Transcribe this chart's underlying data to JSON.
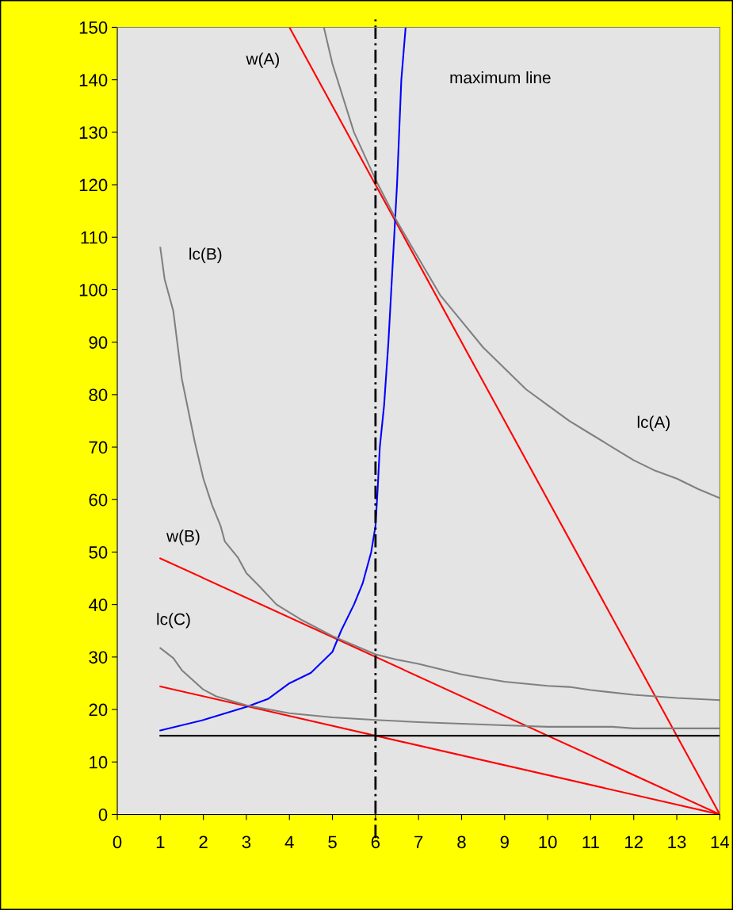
{
  "chart_data": {
    "type": "line",
    "xlim": [
      0,
      14
    ],
    "ylim": [
      0,
      150
    ],
    "xticks": [
      0,
      1,
      2,
      3,
      4,
      5,
      6,
      7,
      8,
      9,
      10,
      11,
      12,
      13,
      14
    ],
    "yticks": [
      0,
      10,
      20,
      30,
      40,
      50,
      60,
      70,
      80,
      90,
      100,
      110,
      120,
      130,
      140,
      150
    ],
    "grid": false,
    "legend": false,
    "marker": "none",
    "series": [
      {
        "name": "w(A)",
        "color": "#ff0000",
        "x": [
          4,
          14
        ],
        "values": [
          150,
          0
        ]
      },
      {
        "name": "w(B)",
        "color": "#ff0000",
        "x": [
          1,
          14
        ],
        "values": [
          48.8,
          0
        ]
      },
      {
        "color": "#ff0000",
        "x": [
          1,
          14
        ],
        "values": [
          24.4,
          0
        ]
      },
      {
        "color": "#000000",
        "x": [
          1,
          14
        ],
        "values": [
          15,
          15
        ]
      },
      {
        "name": "maximum line",
        "color": "#0000ff",
        "x": [
          1,
          2,
          3,
          3.5,
          4,
          4.5,
          5,
          5.2,
          5.5,
          5.7,
          5.9,
          6,
          6.05,
          6.1,
          6.2,
          6.3,
          6.4,
          6.5,
          6.6,
          6.7
        ],
        "values": [
          16,
          18,
          20.5,
          22,
          25,
          27,
          31,
          35,
          40,
          44,
          50,
          55,
          62,
          70,
          78,
          90,
          105,
          120,
          140,
          150
        ]
      },
      {
        "name": "lc(A)",
        "color": "#808080",
        "x": [
          4.8,
          5,
          5.5,
          6,
          6.5,
          7,
          7.5,
          8,
          8.5,
          9,
          9.5,
          10,
          10.5,
          11,
          11.5,
          12,
          12.5,
          13,
          13.5,
          14
        ],
        "values": [
          150,
          143,
          130,
          121,
          113,
          106,
          99,
          94,
          89,
          85,
          81,
          78,
          75,
          72.5,
          70,
          67.5,
          65.5,
          64,
          62,
          60.3
        ]
      },
      {
        "name": "lc(B)",
        "color": "#808080",
        "x": [
          1,
          1.1,
          1.3,
          1.5,
          1.7,
          1.8,
          2,
          2.2,
          2.4,
          2.5,
          2.8,
          3,
          3.3,
          3.7,
          4.3,
          5,
          6,
          6.5,
          7,
          8,
          9,
          10,
          10.5,
          11,
          12,
          13,
          14
        ],
        "values": [
          108,
          102,
          96,
          83,
          75,
          71,
          64,
          59,
          55,
          52,
          49,
          46,
          43.5,
          40,
          37,
          34,
          30.5,
          29.5,
          28.7,
          26.7,
          25.3,
          24.5,
          24.3,
          23.7,
          22.8,
          22.2,
          21.8
        ]
      },
      {
        "name": "lc(C)",
        "color": "#808080",
        "x": [
          1,
          1.3,
          1.5,
          2,
          2.3,
          3,
          4,
          5,
          6,
          7,
          8,
          9,
          10,
          11,
          11.5,
          12,
          14
        ],
        "values": [
          31.7,
          29.8,
          27.5,
          23.8,
          22.5,
          20.8,
          19.3,
          18.5,
          18,
          17.6,
          17.3,
          17,
          16.7,
          16.7,
          16.7,
          16.4,
          16.4
        ]
      }
    ],
    "ref_lines": [
      {
        "axis": "x",
        "value": 6,
        "color": "#000000",
        "line_style": "dashed"
      }
    ]
  }
}
